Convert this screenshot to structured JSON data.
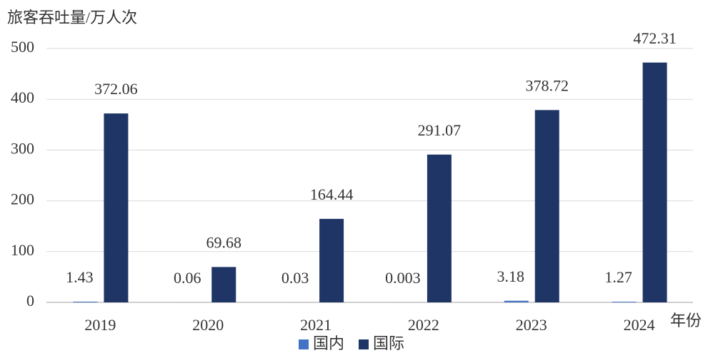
{
  "chart_data": {
    "type": "bar",
    "y_axis_label": "旅客吞吐量/万人次",
    "x_axis_label": "年份",
    "categories": [
      "2019",
      "2020",
      "2021",
      "2022",
      "2023",
      "2024"
    ],
    "series": [
      {
        "name": "国内",
        "color": "#4472c4",
        "values": [
          1.43,
          0.06,
          0.03,
          0.003,
          3.18,
          1.27
        ]
      },
      {
        "name": "国际",
        "color": "#1f3566",
        "values": [
          372.06,
          69.68,
          164.44,
          291.07,
          378.72,
          472.31
        ]
      }
    ],
    "ylim": [
      0,
      500
    ],
    "yticks": [
      0,
      100,
      200,
      300,
      400,
      500
    ],
    "grid": true
  }
}
